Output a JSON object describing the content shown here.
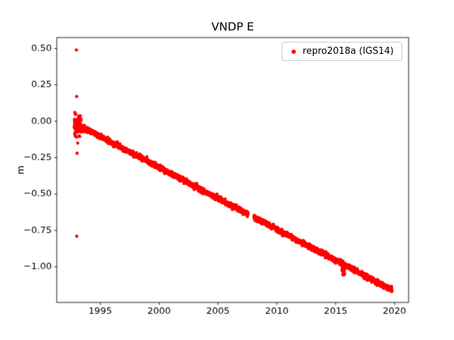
{
  "chart_data": {
    "type": "scatter",
    "title": "VNDP E",
    "xlabel": "",
    "ylabel": "m",
    "xlim": [
      1991.3,
      2021.2
    ],
    "ylim": [
      -1.245,
      0.575
    ],
    "xticks": [
      1995,
      2000,
      2005,
      2010,
      2015,
      2020
    ],
    "xtick_labels": [
      "1995",
      "2000",
      "2005",
      "2010",
      "2015",
      "2020"
    ],
    "yticks": [
      0.5,
      0.25,
      0.0,
      -0.25,
      -0.5,
      -0.75,
      -1.0
    ],
    "ytick_labels": [
      "0.50",
      "0.25",
      "0.00",
      "−0.25",
      "−0.50",
      "−0.75",
      "−1.00"
    ],
    "grid": false,
    "background_color": "#ffffff",
    "axes_color": "#000000",
    "legend": {
      "position": "upper right",
      "entries": [
        {
          "label": "repro2018a (IGS14)",
          "color": "#ff0000",
          "marker": "dot"
        }
      ]
    },
    "series": [
      {
        "name": "repro2018a (IGS14)",
        "color": "#ff0000",
        "marker_radius_px": 2.3,
        "trend": {
          "x_start": 1993.0,
          "x_end": 2019.78,
          "y_at_start": -0.02,
          "slope_m_per_yr": -0.0425,
          "sample_step_yr": 0.01,
          "noise_std_m": 0.008
        },
        "gaps": [
          [
            2007.55,
            2008.05
          ]
        ],
        "startup_cluster": {
          "x_start": 1992.78,
          "x_end": 1993.4,
          "n_points": 90,
          "y_mean": -0.03,
          "y_std": 0.04,
          "y_min": -0.13,
          "y_max": 0.06
        },
        "anomaly_2015": {
          "x_start": 2015.5,
          "x_end": 2015.78,
          "n_points": 28,
          "max_extra_drop_m": 0.095
        },
        "outliers": [
          [
            1992.97,
            0.49
          ],
          [
            1992.99,
            0.17
          ],
          [
            1993.03,
            -0.22
          ],
          [
            1993.0,
            -0.79
          ],
          [
            1993.08,
            -0.15
          ],
          [
            1993.2,
            -0.1
          ]
        ]
      }
    ]
  }
}
